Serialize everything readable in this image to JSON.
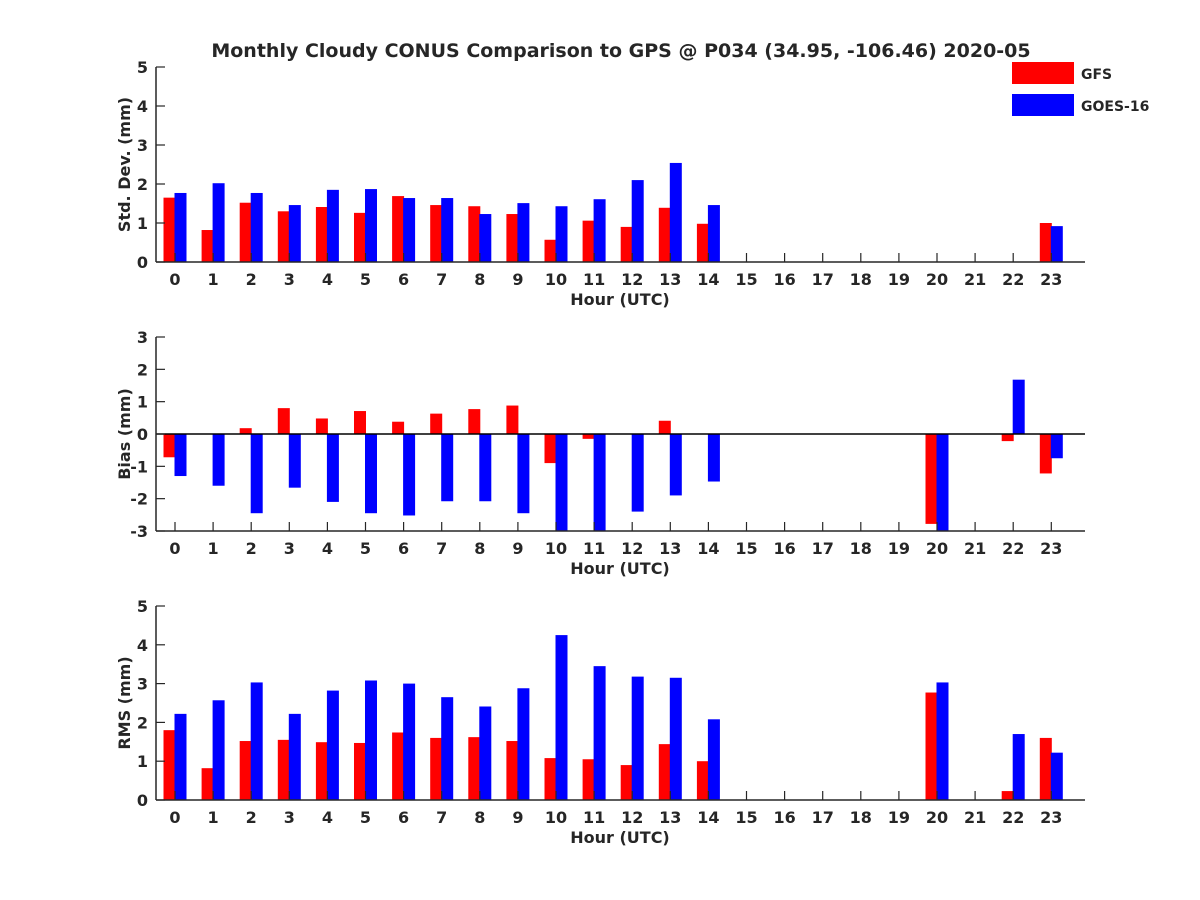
{
  "figure": {
    "title": "Monthly Cloudy CONUS Comparison to GPS @ P034 (34.95, -106.46) 2020-05"
  },
  "legend": {
    "items": [
      {
        "label": "GFS",
        "color": "#ff0000"
      },
      {
        "label": "GOES-16",
        "color": "#0000ff"
      }
    ]
  },
  "chart_data": [
    {
      "type": "bar",
      "title": "Monthly Cloudy CONUS Comparison to GPS @ P034 (34.95, -106.46) 2020-05",
      "xlabel": "Hour (UTC)",
      "ylabel": "Std. Dev. (mm)",
      "ylim": [
        0,
        5
      ],
      "yticks": [
        0,
        1,
        2,
        3,
        4,
        5
      ],
      "categories": [
        "0",
        "1",
        "2",
        "3",
        "4",
        "5",
        "6",
        "7",
        "8",
        "9",
        "10",
        "11",
        "12",
        "13",
        "14",
        "15",
        "16",
        "17",
        "18",
        "19",
        "20",
        "21",
        "22",
        "23"
      ],
      "legend_position": "top-right",
      "grid": false,
      "series": [
        {
          "name": "GFS",
          "color": "#ff0000",
          "values": [
            1.65,
            0.82,
            1.52,
            1.3,
            1.41,
            1.26,
            1.69,
            1.46,
            1.43,
            1.23,
            0.57,
            1.06,
            0.9,
            1.39,
            0.98,
            null,
            null,
            null,
            null,
            null,
            null,
            null,
            null,
            1.0
          ]
        },
        {
          "name": "GOES-16",
          "color": "#0000ff",
          "values": [
            1.77,
            2.02,
            1.77,
            1.46,
            1.85,
            1.87,
            1.64,
            1.64,
            1.23,
            1.51,
            1.43,
            1.61,
            2.1,
            2.54,
            1.46,
            null,
            null,
            null,
            null,
            null,
            null,
            null,
            null,
            0.92
          ]
        }
      ]
    },
    {
      "type": "bar",
      "xlabel": "Hour (UTC)",
      "ylabel": "Bias (mm)",
      "ylim": [
        -3,
        3
      ],
      "yticks": [
        -3,
        -2,
        -1,
        0,
        1,
        2,
        3
      ],
      "categories": [
        "0",
        "1",
        "2",
        "3",
        "4",
        "5",
        "6",
        "7",
        "8",
        "9",
        "10",
        "11",
        "12",
        "13",
        "14",
        "15",
        "16",
        "17",
        "18",
        "19",
        "20",
        "21",
        "22",
        "23"
      ],
      "zero_line": true,
      "grid": false,
      "series": [
        {
          "name": "GFS",
          "color": "#ff0000",
          "values": [
            -0.72,
            null,
            0.18,
            0.8,
            0.48,
            0.71,
            0.38,
            0.63,
            0.77,
            0.88,
            -0.9,
            -0.15,
            null,
            0.41,
            null,
            null,
            null,
            null,
            null,
            null,
            -2.78,
            null,
            -0.22,
            -1.22
          ]
        },
        {
          "name": "GOES-16",
          "color": "#0000ff",
          "values": [
            -1.3,
            -1.6,
            -2.45,
            -1.66,
            -2.1,
            -2.45,
            -2.52,
            -2.08,
            -2.08,
            -2.45,
            -3.0,
            -3.0,
            -2.4,
            -1.9,
            -1.47,
            null,
            null,
            null,
            null,
            null,
            -3.0,
            null,
            1.68,
            -0.75
          ]
        }
      ]
    },
    {
      "type": "bar",
      "xlabel": "Hour (UTC)",
      "ylabel": "RMS (mm)",
      "ylim": [
        0,
        5
      ],
      "yticks": [
        0,
        1,
        2,
        3,
        4,
        5
      ],
      "categories": [
        "0",
        "1",
        "2",
        "3",
        "4",
        "5",
        "6",
        "7",
        "8",
        "9",
        "10",
        "11",
        "12",
        "13",
        "14",
        "15",
        "16",
        "17",
        "18",
        "19",
        "20",
        "21",
        "22",
        "23"
      ],
      "grid": false,
      "series": [
        {
          "name": "GFS",
          "color": "#ff0000",
          "values": [
            1.8,
            0.82,
            1.52,
            1.55,
            1.49,
            1.47,
            1.74,
            1.6,
            1.62,
            1.52,
            1.08,
            1.05,
            0.9,
            1.44,
            1.0,
            null,
            null,
            null,
            null,
            null,
            2.77,
            null,
            0.23,
            1.6
          ]
        },
        {
          "name": "GOES-16",
          "color": "#0000ff",
          "values": [
            2.22,
            2.57,
            3.03,
            2.22,
            2.82,
            3.08,
            3.0,
            2.65,
            2.41,
            2.88,
            4.25,
            3.45,
            3.18,
            3.15,
            2.08,
            null,
            null,
            null,
            null,
            null,
            3.03,
            null,
            1.7,
            1.22
          ]
        }
      ]
    }
  ]
}
